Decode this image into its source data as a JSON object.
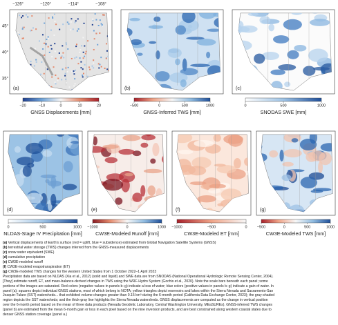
{
  "longitude_labels": [
    "−126°",
    "−120°",
    "−114°",
    "−108°"
  ],
  "latitude_labels": [
    "45°",
    "40°",
    "35°"
  ],
  "panels": [
    {
      "label": "(a)",
      "colorbar_title": "GNSS Displacements [mm]",
      "colorbar_ticks": [
        "−20",
        "−10",
        "0",
        "10",
        "20"
      ]
    },
    {
      "label": "(b)",
      "colorbar_title": "GNSS-Inferred TWS [mm]",
      "colorbar_ticks": [
        "−500",
        "0",
        "500",
        "1000"
      ]
    },
    {
      "label": "(c)",
      "colorbar_title": "SNODAS SWE [mm]",
      "colorbar_ticks": [
        "0",
        "500",
        "1000"
      ]
    },
    {
      "label": "(d)",
      "colorbar_title": "NLDAS-Stage IV Precipitation [mm]",
      "colorbar_ticks": [
        "0",
        "500",
        "1000"
      ]
    },
    {
      "label": "(e)",
      "colorbar_title": "CW3E-Modeled Runoff [mm]",
      "colorbar_ticks": [
        "−1000",
        "0",
        "1000"
      ]
    },
    {
      "label": "(f)",
      "colorbar_title": "CW3E-Modeled ET [mm]",
      "colorbar_ticks": [
        "−1000",
        "−500",
        "0"
      ]
    },
    {
      "label": "(g)",
      "colorbar_title": "CW3E-Modeled TWS [mm]",
      "colorbar_ticks": [
        "−500",
        "0",
        "500",
        "1000"
      ]
    }
  ],
  "caption": {
    "items": [
      {
        "label": "(a)",
        "text": "Vertical displacements of Earth's surface (red = uplift, blue = subsidence) estimated from Global Navigation Satellite Systems (GNSS)"
      },
      {
        "label": "(b)",
        "text": "terrestrial water storage (TWS) changes inferred from the GNSS-measured displacements"
      },
      {
        "label": "(c)",
        "text": "snow water equivalent (SWE)"
      },
      {
        "label": "(d)",
        "text": "cumulative precipitation"
      },
      {
        "label": "(e)",
        "text": "CW3E-modeled runoff"
      },
      {
        "label": "(f)",
        "text": "CW3E-modeled evapotranspiration (ET)"
      },
      {
        "label": "(g)",
        "text": "CW3E-modeled TWS changes for the western United States from 1 October 2022–1 April 2023"
      }
    ],
    "lines": [
      "Precipitation data are based on NLDAS (Xia et al., 2012) (solid and liquid) and SWE data are from SNODAS (National Operational Hydrologic Remote Sensing Center, 2004).",
      "[They] estimate runoff, ET, and mass-balance-derived changes in TWS using the WRF-Hydro System (Gochis et al., 2020). Note the scale bars beneath each panel; some",
      "portions of the images are saturated. Red colors (negative values in panels b–g) indicate a loss of water; blue colors (positive values in panels b–g) indicate a gain of water. In",
      "panel (a): squares depict individual GNSS stations, most of which belong to NOTA; yellow triangles depict reservoirs and lakes within the Sierra Nevada and Sacramento-San",
      "Joaquin-Tulare (SST) watersheds... that exhibited volume changes greater than 0.15 km³ during the 6-month period (California Data Exchange Center, 2023); the gray-shaded",
      "region depicts the SST watersheds; and the thick-gray line highlights the Sierra Nevada watersheds. GNSS displacements are computed as the change in vertical position",
      "over the 6-month period based on the mean of three data products (Nevada Geodetic Laboratory, Central Washington University, MEaSUREs). GNSS-inferred TWS changes",
      "(panel b) are estimated from the mean 6-month gain or loss in each pixel based on the nine inversion products, and are best constrained along western coastal states due to",
      "denser GNSS station coverage (panel a.)"
    ]
  }
}
